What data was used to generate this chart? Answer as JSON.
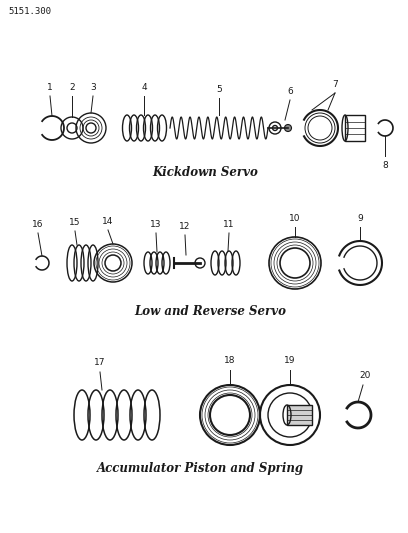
{
  "title": "5151.300",
  "bg_color": "#ffffff",
  "line_color": "#1a1a1a",
  "label1": "Kickdown Servo",
  "label2": "Low and Reverse Servo",
  "label3": "Accumulator Piston and Spring",
  "figsize": [
    4.08,
    5.33
  ],
  "dpi": 100
}
